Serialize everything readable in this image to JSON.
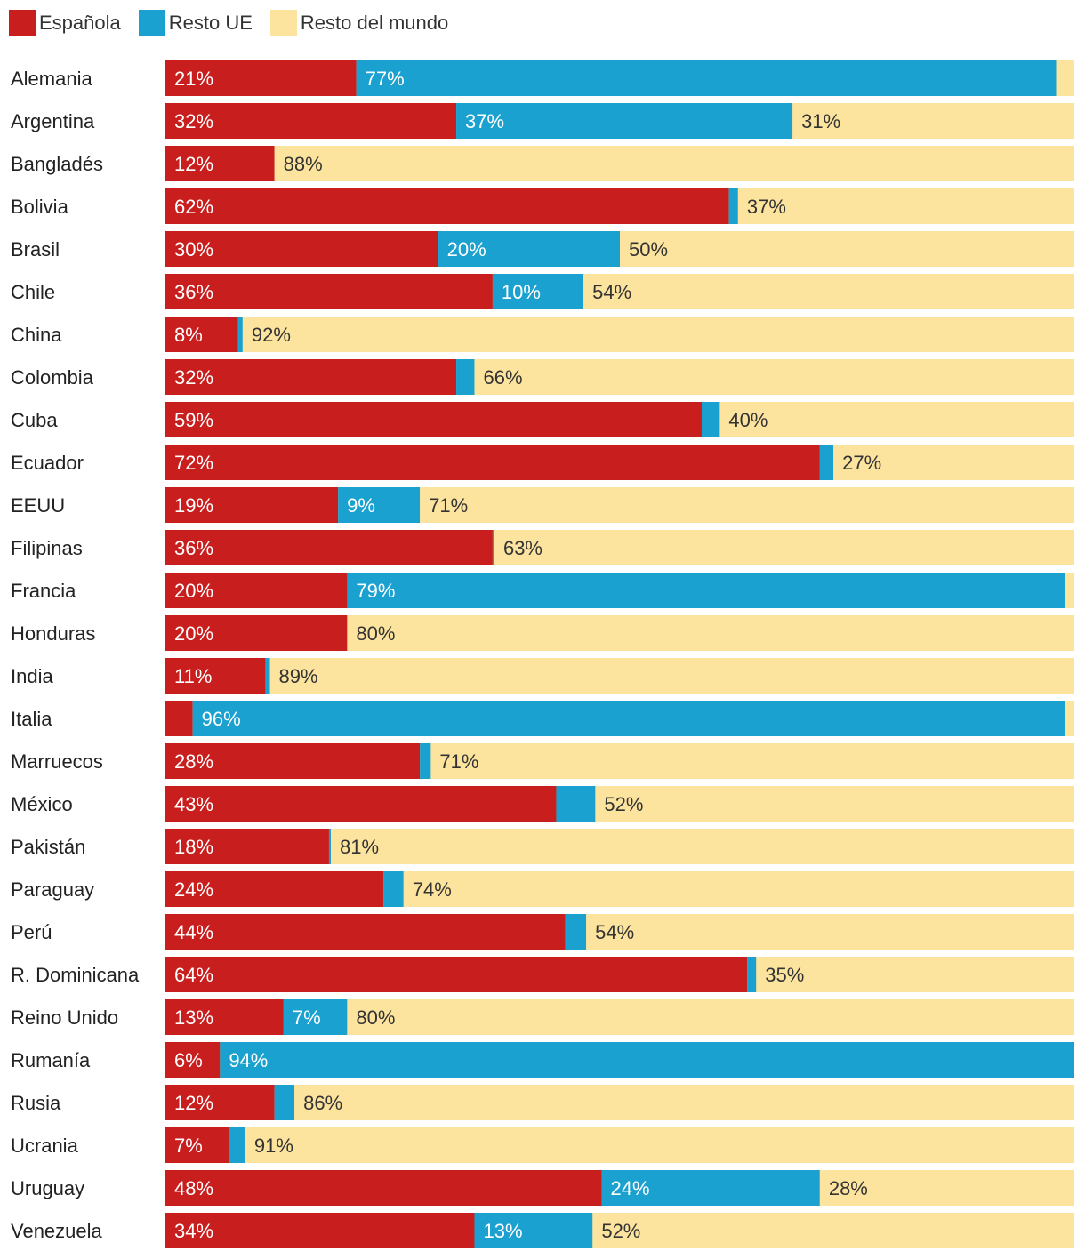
{
  "chart_data": {
    "type": "bar",
    "orientation": "horizontal",
    "stacked": true,
    "legend_position": "top-left",
    "series_names": [
      "Española",
      "Resto UE",
      "Resto del mundo"
    ],
    "colors": {
      "Española": "#c81e1e",
      "Resto UE": "#1aa1cf",
      "Resto del mundo": "#fde49e"
    },
    "label_colors": {
      "Española": "#ffffff",
      "Resto UE": "#ffffff",
      "Resto del mundo": "#333333"
    },
    "categories": [
      "Alemania",
      "Argentina",
      "Bangladés",
      "Bolivia",
      "Brasil",
      "Chile",
      "China",
      "Colombia",
      "Cuba",
      "Ecuador",
      "EEUU",
      "Filipinas",
      "Francia",
      "Honduras",
      "India",
      "Italia",
      "Marruecos",
      "México",
      "Pakistán",
      "Paraguay",
      "Perú",
      "R. Dominicana",
      "Reino Unido",
      "Rumanía",
      "Rusia",
      "Ucrania",
      "Uruguay",
      "Venezuela"
    ],
    "series": [
      {
        "name": "Española",
        "values": [
          21,
          32,
          12,
          62,
          30,
          36,
          8,
          32,
          59,
          72,
          19,
          36,
          20,
          20,
          11,
          3,
          28,
          43,
          18,
          24,
          44,
          64,
          13,
          6,
          12,
          7,
          48,
          34
        ],
        "labels": [
          "21%",
          "32%",
          "12%",
          "62%",
          "30%",
          "36%",
          "8%",
          "32%",
          "59%",
          "72%",
          "19%",
          "36%",
          "20%",
          "20%",
          "11%",
          "",
          "28%",
          "43%",
          "18%",
          "24%",
          "44%",
          "64%",
          "13%",
          "6%",
          "12%",
          "7%",
          "48%",
          "34%"
        ]
      },
      {
        "name": "Resto UE",
        "values": [
          77,
          37,
          0,
          1,
          20,
          10,
          0.5,
          2,
          2,
          1.5,
          9,
          0.2,
          79,
          0,
          0.5,
          96,
          1.2,
          4.3,
          0.2,
          2.2,
          2.3,
          1,
          7,
          94,
          2.2,
          1.8,
          24,
          13
        ],
        "labels": [
          "77%",
          "37%",
          "",
          "",
          "20%",
          "10%",
          "",
          "",
          "",
          "",
          "9%",
          "",
          "79%",
          "",
          "",
          "96%",
          "",
          "",
          "",
          "",
          "",
          "",
          "7%",
          "94%",
          "",
          "",
          "24%",
          "13%"
        ]
      },
      {
        "name": "Resto del mundo",
        "values": [
          2,
          31,
          88,
          37,
          50,
          54,
          92,
          66,
          40,
          27,
          71,
          63,
          1,
          80,
          89,
          1,
          71,
          52,
          81,
          74,
          54,
          35,
          80,
          0,
          86,
          91,
          28,
          52
        ],
        "labels": [
          "",
          "31%",
          "88%",
          "37%",
          "50%",
          "54%",
          "92%",
          "66%",
          "40%",
          "27%",
          "71%",
          "63%",
          "",
          "80%",
          "89%",
          "",
          "71%",
          "52%",
          "81%",
          "74%",
          "54%",
          "35%",
          "80%",
          "",
          "86%",
          "91%",
          "28%",
          "52%"
        ]
      }
    ],
    "xlim": [
      0,
      100
    ]
  }
}
